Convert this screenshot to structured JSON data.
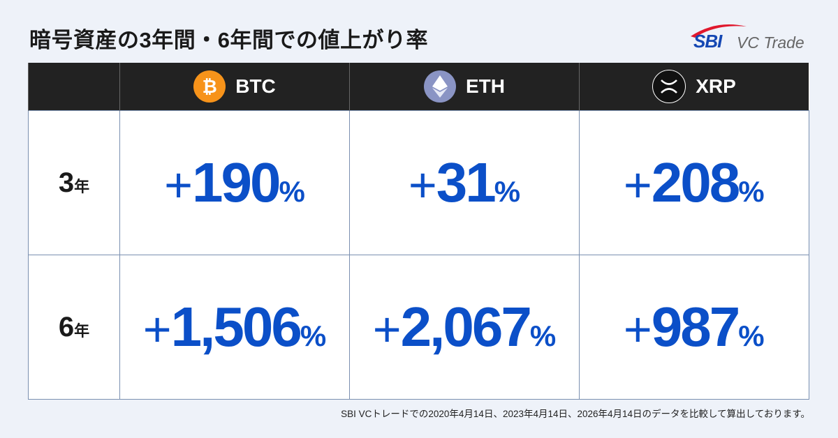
{
  "title": "暗号資産の3年間・6年間での値上がり率",
  "logo": {
    "brand": "SBI",
    "name": "VC Trade"
  },
  "colors": {
    "accent": "#0b4fc8",
    "header_bg": "#222222",
    "btc": "#f7931a",
    "eth": "#627eea",
    "xrp": "#111111"
  },
  "table": {
    "columns": [
      {
        "label": "BTC",
        "icon": "bitcoin-icon"
      },
      {
        "label": "ETH",
        "icon": "ethereum-icon"
      },
      {
        "label": "XRP",
        "icon": "xrp-icon"
      }
    ],
    "rows": [
      {
        "num": "3",
        "unit": "年",
        "values": [
          {
            "sign": "+",
            "num": "190",
            "pct": "%"
          },
          {
            "sign": "+",
            "num": "31",
            "pct": "%"
          },
          {
            "sign": "+",
            "num": "208",
            "pct": "%"
          }
        ]
      },
      {
        "num": "6",
        "unit": "年",
        "values": [
          {
            "sign": "+",
            "num": "1,506",
            "pct": "%"
          },
          {
            "sign": "+",
            "num": "2,067",
            "pct": "%"
          },
          {
            "sign": "+",
            "num": "987",
            "pct": "%"
          }
        ]
      }
    ]
  },
  "footnote": "SBI VCトレードでの2020年4月14日、2023年4月14日、2026年4月14日のデータを比較して算出しております。"
}
